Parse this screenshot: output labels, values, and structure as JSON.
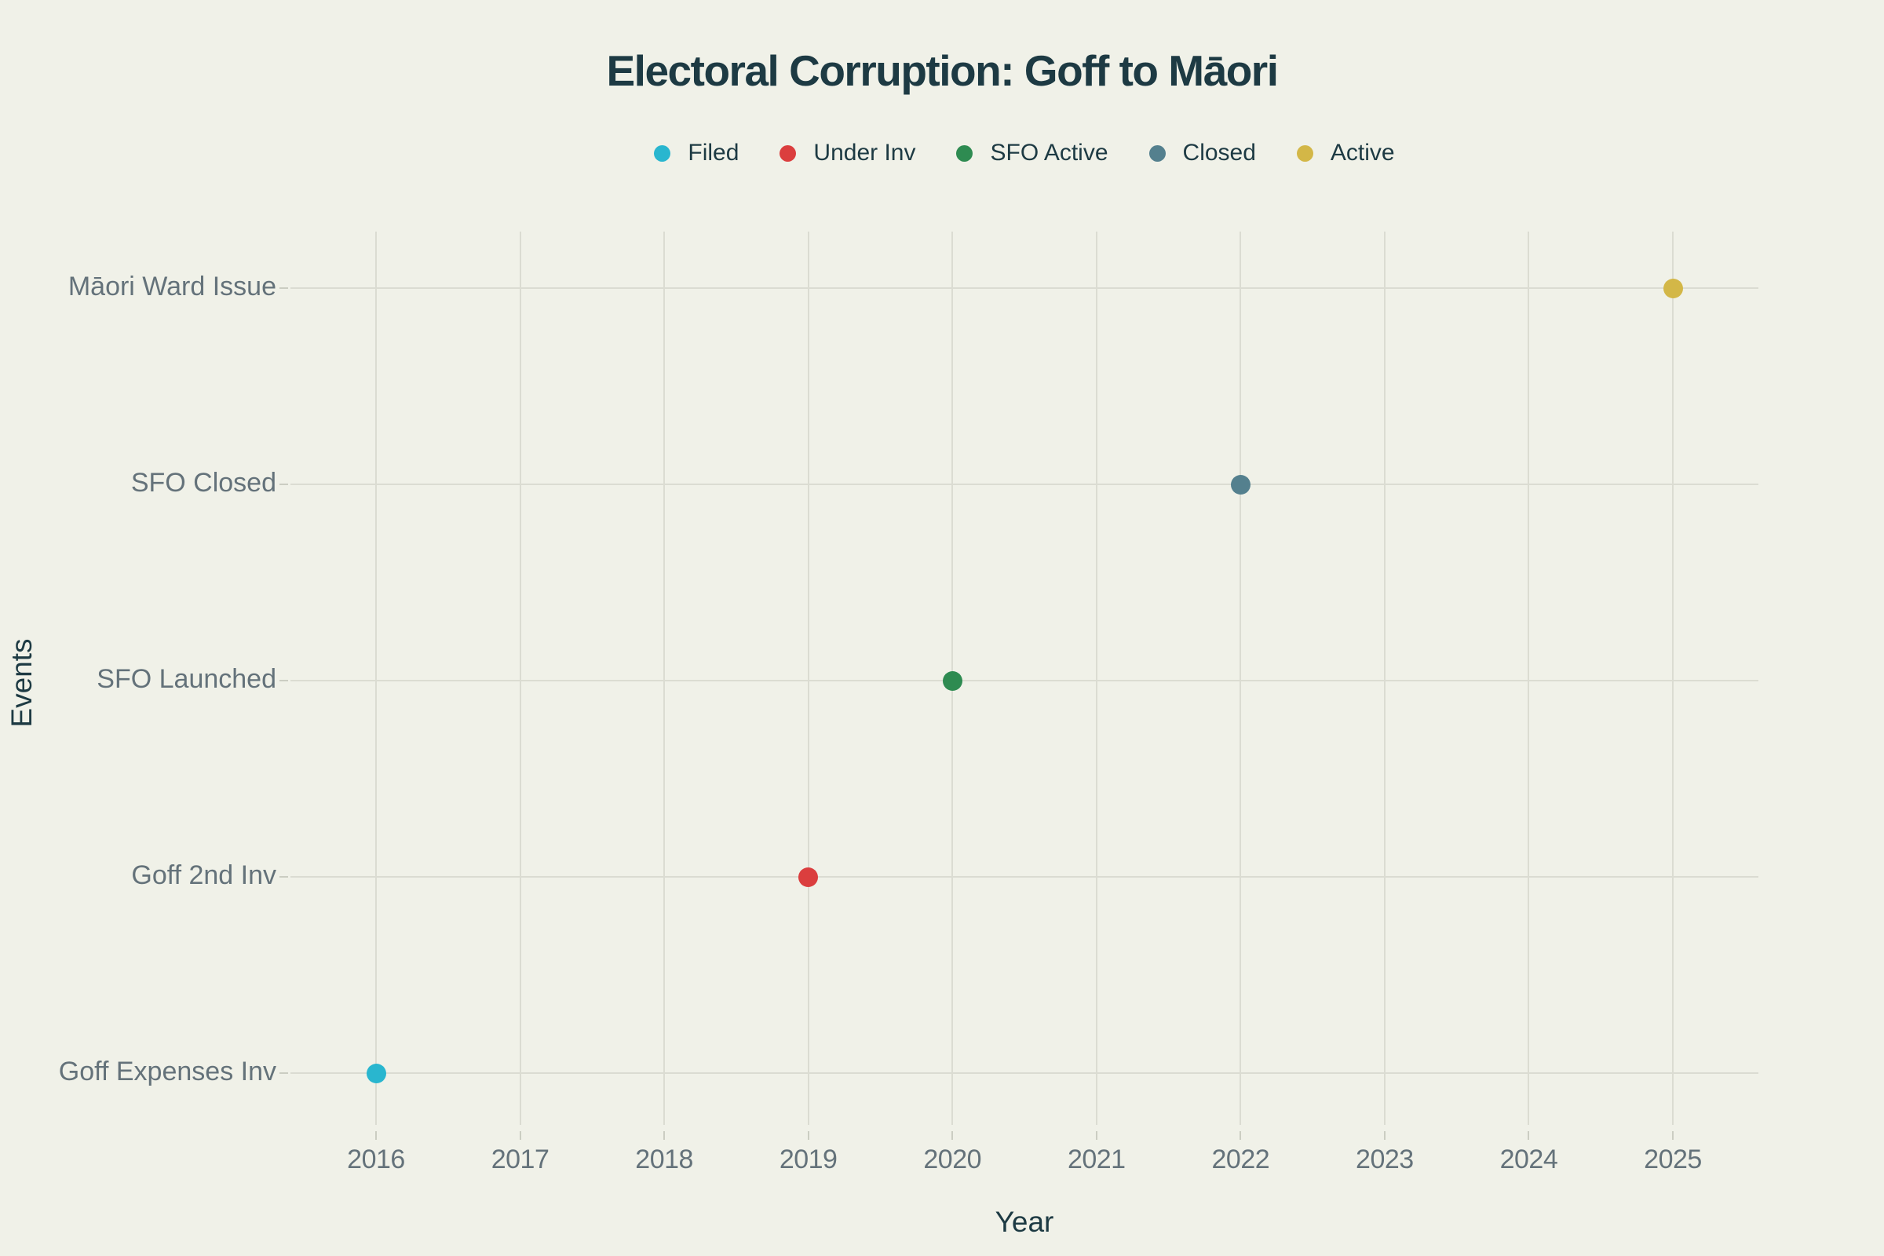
{
  "page": {
    "background_color": "#F0F1E8",
    "title_color": "#1D3A43",
    "tick_label_color": "#64727A",
    "gridline_color": "#DBDCD2",
    "tick_mark_color": "#CBCDC2"
  },
  "chart_data": {
    "type": "scatter",
    "title": "Electoral Corruption: Goff to Māori",
    "xlabel": "Year",
    "ylabel": "Events",
    "grid": true,
    "legend_position": "top-center",
    "x_ticks": [
      2016,
      2017,
      2018,
      2019,
      2020,
      2021,
      2022,
      2023,
      2024,
      2025
    ],
    "x_range": [
      2015.4,
      2025.6
    ],
    "categories_bottom_to_top": [
      "Goff Expenses Inv",
      "Goff 2nd Inv",
      "SFO Launched",
      "SFO Closed",
      "Māori Ward Issue"
    ],
    "legend": [
      {
        "label": "Filed",
        "color": "#29B6CF"
      },
      {
        "label": "Under Inv",
        "color": "#DB3E3E"
      },
      {
        "label": "SFO Active",
        "color": "#2E8B51"
      },
      {
        "label": "Closed",
        "color": "#54808E"
      },
      {
        "label": "Active",
        "color": "#D3B747"
      }
    ],
    "points": [
      {
        "event": "Goff Expenses Inv",
        "year": 2016,
        "status": "Filed",
        "color": "#29B6CF"
      },
      {
        "event": "Goff 2nd Inv",
        "year": 2019,
        "status": "Under Inv",
        "color": "#DB3E3E"
      },
      {
        "event": "SFO Launched",
        "year": 2020,
        "status": "SFO Active",
        "color": "#2E8B51"
      },
      {
        "event": "SFO Closed",
        "year": 2022,
        "status": "Closed",
        "color": "#54808E"
      },
      {
        "event": "Māori Ward Issue",
        "year": 2025,
        "status": "Active",
        "color": "#D3B747"
      }
    ]
  }
}
